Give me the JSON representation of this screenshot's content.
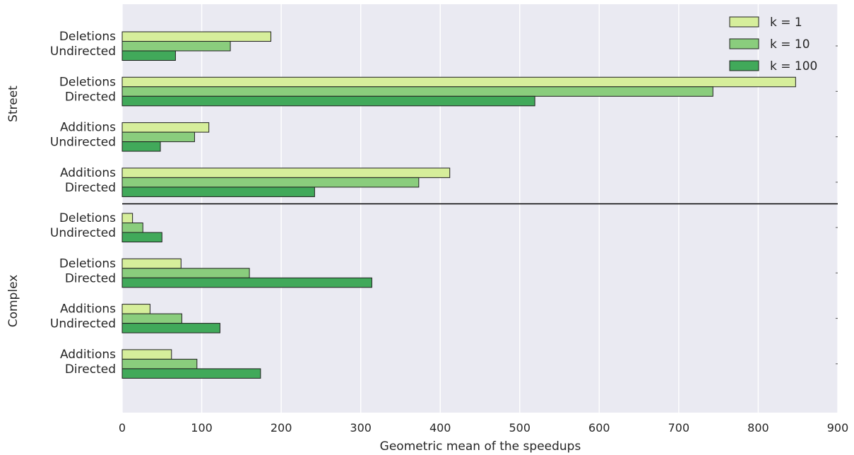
{
  "chart_data": {
    "type": "bar",
    "orientation": "horizontal",
    "xlabel": "Geometric mean of the speedups",
    "xlim": [
      0,
      900
    ],
    "xticks": [
      "0",
      "100",
      "200",
      "300",
      "400",
      "500",
      "600",
      "700",
      "800",
      "900"
    ],
    "grid": true,
    "legend_position": "top-right",
    "series": [
      {
        "name": "k = 1",
        "color": "#d6ee9b"
      },
      {
        "name": "k = 10",
        "color": "#8acd7d"
      },
      {
        "name": "k = 100",
        "color": "#41a95a"
      }
    ],
    "groups": [
      {
        "name": "Street",
        "categories": [
          {
            "line1": "Deletions",
            "line2": "Undirected",
            "values": [
              187,
              136,
              67
            ]
          },
          {
            "line1": "Deletions",
            "line2": "Directed",
            "values": [
              847,
              743,
              519
            ]
          },
          {
            "line1": "Additions",
            "line2": "Undirected",
            "values": [
              109,
              91,
              48
            ]
          },
          {
            "line1": "Additions",
            "line2": "Directed",
            "values": [
              412,
              373,
              242
            ]
          }
        ]
      },
      {
        "name": "Complex",
        "categories": [
          {
            "line1": "Deletions",
            "line2": "Undirected",
            "values": [
              13,
              26,
              50
            ]
          },
          {
            "line1": "Deletions",
            "line2": "Directed",
            "values": [
              74,
              160,
              314
            ]
          },
          {
            "line1": "Additions",
            "line2": "Undirected",
            "values": [
              35,
              75,
              123
            ]
          },
          {
            "line1": "Additions",
            "line2": "Directed",
            "values": [
              62,
              94,
              174
            ]
          }
        ]
      }
    ]
  }
}
